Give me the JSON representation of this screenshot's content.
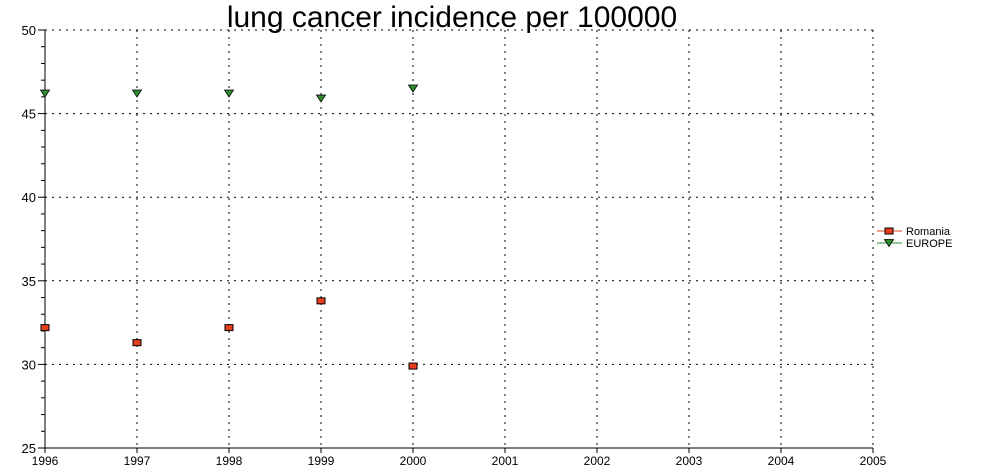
{
  "chart_data": {
    "type": "scatter",
    "title": "lung cancer incidence per 100000",
    "xlabel": "",
    "ylabel": "",
    "xlim": [
      1996,
      2005
    ],
    "ylim": [
      25,
      50
    ],
    "xticks": [
      "1996",
      "1997",
      "1998",
      "1999",
      "2000",
      "2001",
      "2002",
      "2003",
      "2004",
      "2005"
    ],
    "yticks": [
      "25",
      "30",
      "35",
      "40",
      "45",
      "50"
    ],
    "grid": true,
    "legend_position": "right",
    "series": [
      {
        "name": "Romania",
        "marker": "square",
        "color": "#e8401c",
        "x": [
          1996,
          1997,
          1998,
          1999,
          2000
        ],
        "values": [
          32.2,
          31.3,
          32.2,
          33.8,
          29.9
        ]
      },
      {
        "name": "EUROPE",
        "marker": "triangle-down",
        "color": "#2e8b2e",
        "x": [
          1996,
          1997,
          1998,
          1999,
          2000
        ],
        "values": [
          46.2,
          46.2,
          46.2,
          45.9,
          46.5
        ]
      }
    ]
  }
}
